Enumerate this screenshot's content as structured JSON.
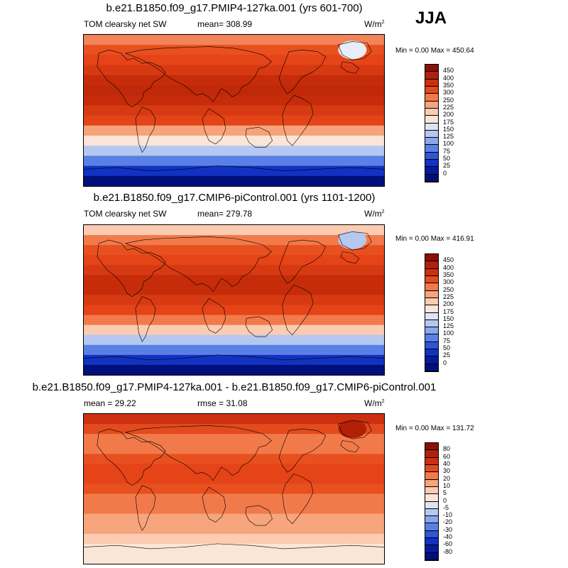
{
  "season": "JJA",
  "panels": [
    {
      "title": "b.e21.B1850.f09_g17.PMIP4-127ka.001 (yrs 601-700)",
      "left": "TOM clearsky net SW",
      "center": "mean= 308.99",
      "units": "W/m",
      "units_sup": "2",
      "minmax": "Min =   0.00 Max = 450.64",
      "levels": [
        "450",
        "400",
        "350",
        "300",
        "250",
        "225",
        "200",
        "175",
        "150",
        "125",
        "100",
        "75",
        "50",
        "25",
        "0"
      ],
      "colors": [
        "#8a0f0f",
        "#b22008",
        "#cc3010",
        "#e34a1d",
        "#f27a4a",
        "#f7a57d",
        "#fbcbb2",
        "#fbe5d7",
        "#dde5f5",
        "#b5c8f0",
        "#8aa6ec",
        "#5a80e6",
        "#2f55d8",
        "#1232c2",
        "#041c9c",
        "#00107a"
      ],
      "bands": [
        "#f38359",
        "#e9501f",
        "#e54318",
        "#d73a12",
        "#c62c0a",
        "#c0280a",
        "#c62c0a",
        "#d73a12",
        "#e54318",
        "#f6a37b",
        "#fbe5d7",
        "#b5c8f0",
        "#5a80e6",
        "#1232c2",
        "#00107a"
      ],
      "greenland": "#e8eef8"
    },
    {
      "title": "b.e21.B1850.f09_g17.CMIP6-piControl.001 (yrs 1101-1200)",
      "left": "TOM clearsky net SW",
      "center": "mean= 279.78",
      "units": "W/m",
      "units_sup": "2",
      "minmax": "Min =   0.00 Max = 416.91",
      "levels": [
        "450",
        "400",
        "350",
        "300",
        "250",
        "225",
        "200",
        "175",
        "150",
        "125",
        "100",
        "75",
        "50",
        "25",
        "0"
      ],
      "colors": [
        "#8a0f0f",
        "#b22008",
        "#cc3010",
        "#e34a1d",
        "#f27a4a",
        "#f7a57d",
        "#fbcbb2",
        "#fbe5d7",
        "#dde5f5",
        "#b5c8f0",
        "#8aa6ec",
        "#5a80e6",
        "#2f55d8",
        "#1232c2",
        "#041c9c",
        "#00107a"
      ],
      "bands": [
        "#fbcbb2",
        "#f27a4a",
        "#e9501f",
        "#e54318",
        "#d73a12",
        "#c62c0a",
        "#c62c0a",
        "#d73a12",
        "#e54318",
        "#f27a4a",
        "#fbcbb2",
        "#b5c8f0",
        "#5a80e6",
        "#1232c2",
        "#00107a"
      ],
      "greenland": "#b5c8f0"
    },
    {
      "title": "b.e21.B1850.f09_g17.PMIP4-127ka.001 - b.e21.B1850.f09_g17.CMIP6-piControl.001",
      "left": "mean =  29.22",
      "center": "rmse =  31.08",
      "units": "W/m",
      "units_sup": "2",
      "minmax": "Min =   0.00 Max = 131.72",
      "levels": [
        "80",
        "60",
        "40",
        "30",
        "20",
        "10",
        "5",
        "0",
        "-5",
        "-10",
        "-20",
        "-30",
        "-40",
        "-60",
        "-80"
      ],
      "colors": [
        "#8a0f0f",
        "#b22008",
        "#cc3010",
        "#e34a1d",
        "#f27a4a",
        "#f7a57d",
        "#fbcbb2",
        "#fbe5d7",
        "#dde5f5",
        "#b5c8f0",
        "#8aa6ec",
        "#5a80e6",
        "#2f55d8",
        "#1232c2",
        "#041c9c",
        "#00107a"
      ],
      "bands": [
        "#cc3010",
        "#e34a1d",
        "#f27a4a",
        "#f27a4a",
        "#e9501f",
        "#e54318",
        "#e54318",
        "#e9501f",
        "#f27a4a",
        "#f27a4a",
        "#f7a57d",
        "#f7a57d",
        "#fbcbb2",
        "#fbe5d7",
        "#fbe5d7"
      ],
      "greenland": "#b22008"
    }
  ]
}
